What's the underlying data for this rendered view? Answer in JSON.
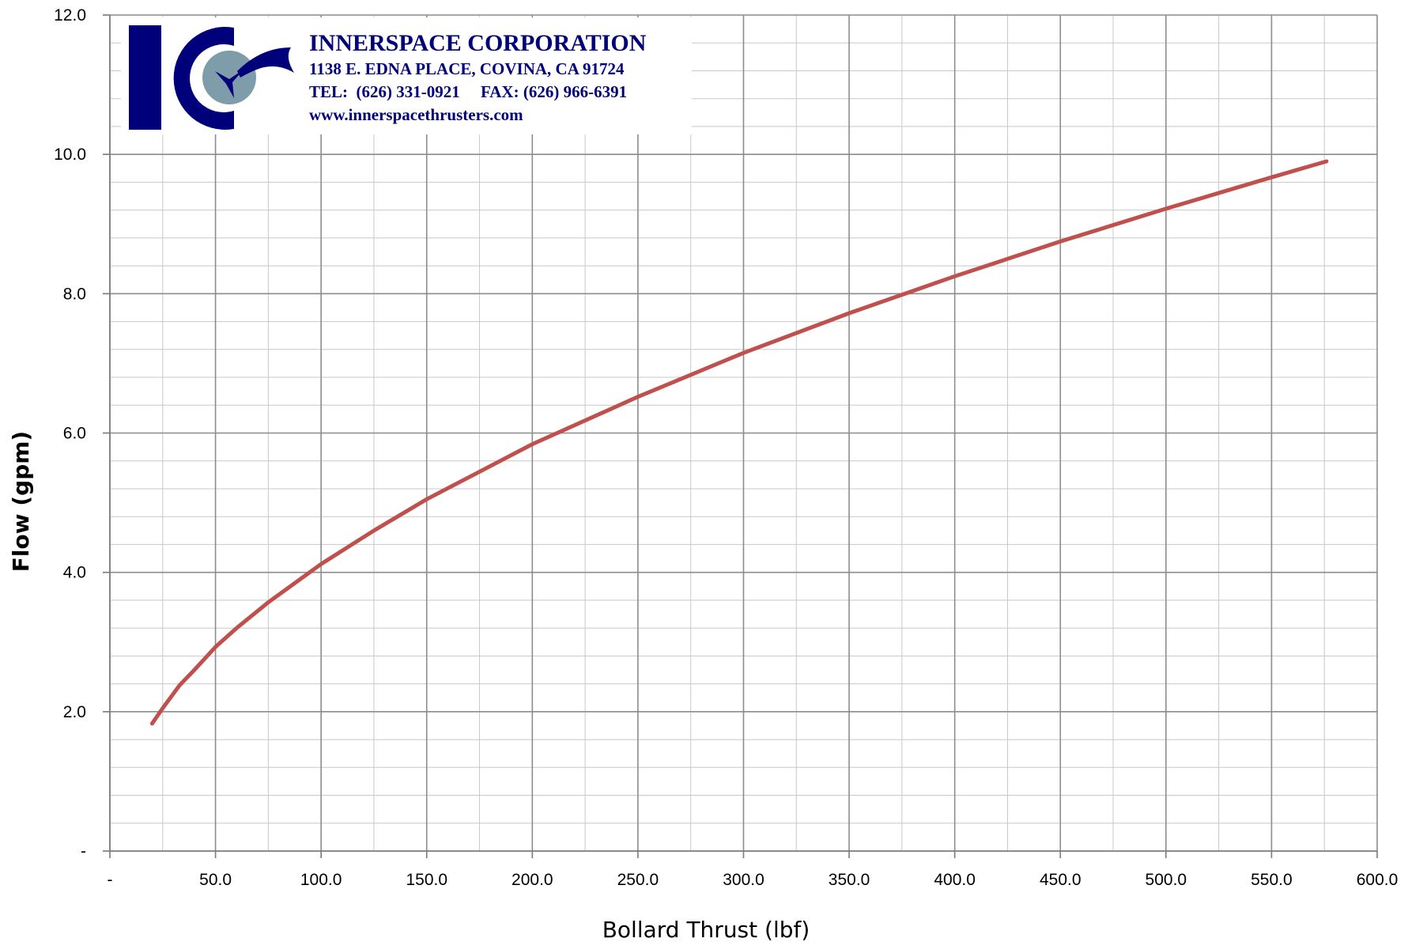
{
  "logo": {
    "company": "INNERSPACE CORPORATION",
    "address": "1138 E. EDNA PLACE, COVINA, CA 91724",
    "contact": "TEL:  (626) 331-0921     FAX: (626) 966-6391",
    "website": "www.innerspacethrusters.com",
    "mark_text": "IC",
    "colors": {
      "navy": "#00007a",
      "sphere": "#7f9caa",
      "text": "#00007a"
    }
  },
  "chart_data": {
    "type": "line",
    "title": "",
    "xlabel": "Bollard Thrust (lbf)",
    "ylabel": "Flow (gpm)",
    "xlim": [
      0,
      600
    ],
    "ylim": [
      0,
      12
    ],
    "x_ticks": [
      0,
      50,
      100,
      150,
      200,
      250,
      300,
      350,
      400,
      450,
      500,
      550,
      600
    ],
    "x_tick_labels": [
      "-",
      "50.0",
      "100.0",
      "150.0",
      "200.0",
      "250.0",
      "300.0",
      "350.0",
      "400.0",
      "450.0",
      "500.0",
      "550.0",
      "600.0"
    ],
    "y_ticks": [
      0,
      2,
      4,
      6,
      8,
      10,
      12
    ],
    "y_tick_labels": [
      "-",
      "2.0",
      "4.0",
      "6.0",
      "8.0",
      "10.0",
      "12.0"
    ],
    "grid": {
      "x_major_step": 50,
      "x_minor_step": 25,
      "y_major_step": 2,
      "y_minor_step": 0.4
    },
    "series": [
      {
        "color": "#c0504d",
        "x": [
          20,
          25,
          33,
          40,
          50,
          60,
          75,
          100,
          125,
          150,
          200,
          250,
          300,
          350,
          400,
          450,
          500,
          550,
          576
        ],
        "y": [
          1.83,
          2.05,
          2.38,
          2.6,
          2.93,
          3.2,
          3.57,
          4.12,
          4.6,
          5.05,
          5.84,
          6.52,
          7.15,
          7.72,
          8.25,
          8.75,
          9.22,
          9.67,
          9.9
        ]
      }
    ]
  }
}
